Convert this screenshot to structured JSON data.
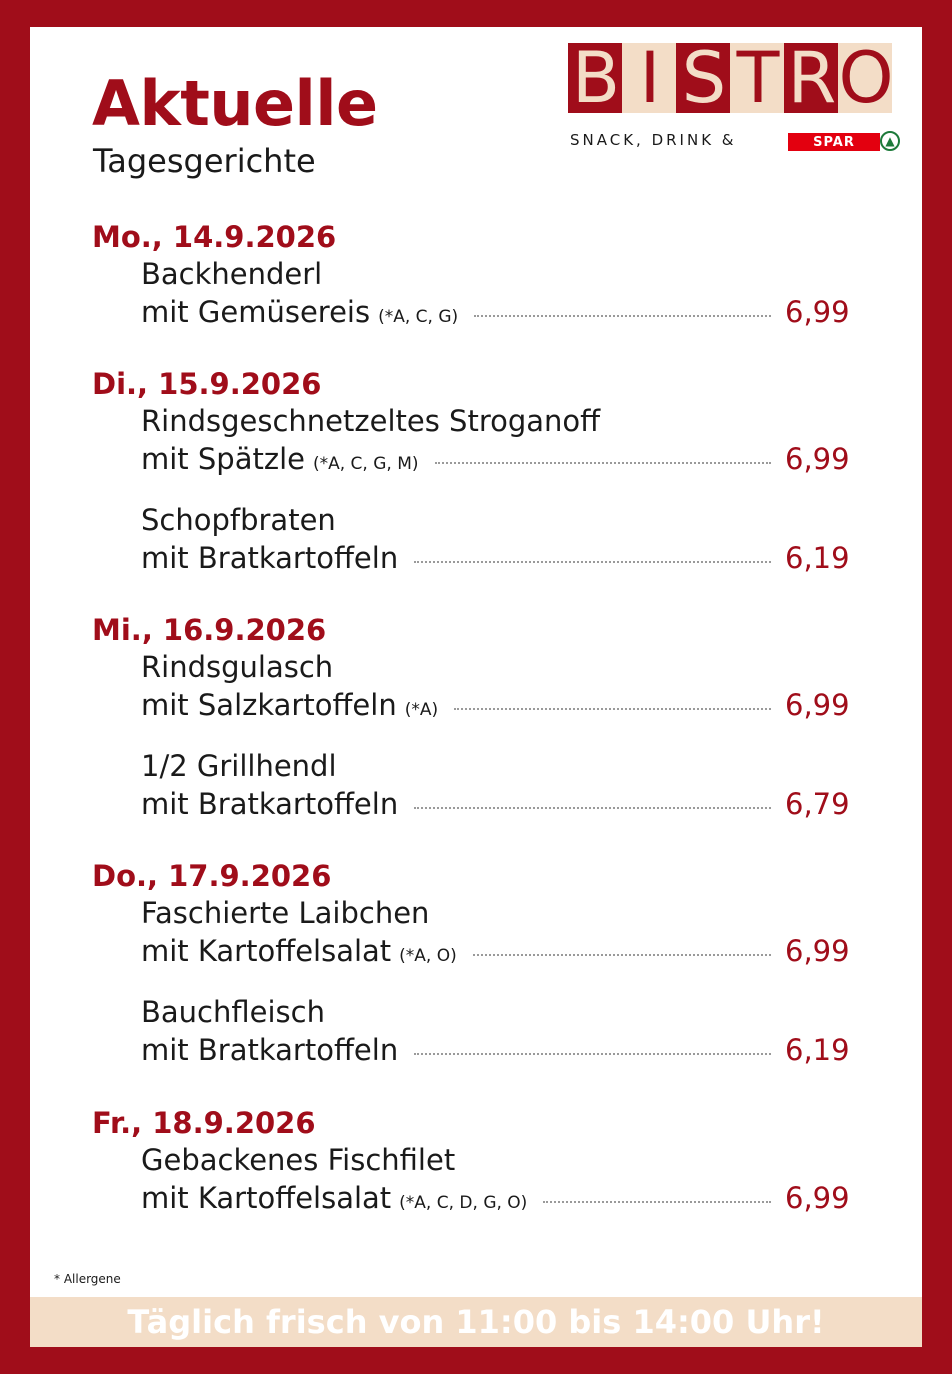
{
  "header": {
    "title": "Aktuelle",
    "subtitle": "Tagesgerichte"
  },
  "logo": {
    "letters": [
      "B",
      "I",
      "S",
      "T",
      "R",
      "O"
    ],
    "tagline": "SNACK, DRINK &",
    "brand": "SPAR",
    "colors": {
      "red": "#a00d1a",
      "cream": "#f3ddc7",
      "spar": "#e3000f"
    }
  },
  "menu": {
    "days": [
      {
        "label": "Mo., 14.9.2026"
      },
      {
        "label": "Di., 15.9.2026"
      },
      {
        "label": "Mi., 16.9.2026"
      },
      {
        "label": "Do., 17.9.2026"
      },
      {
        "label": "Fr., 18.9.2026"
      }
    ],
    "dishes": [
      {
        "line1": "Backhenderl",
        "line2": "mit Gemüsereis",
        "allergens": "(*A, C, G)",
        "price": "6,99"
      },
      {
        "line1": "Rindsgeschnetzeltes Stroganoff",
        "line2": "mit Spätzle",
        "allergens": "(*A, C, G, M)",
        "price": "6,99"
      },
      {
        "line1": "Schopfbraten",
        "line2": "mit Bratkartoffeln",
        "allergens": "",
        "price": "6,19"
      },
      {
        "line1": "Rindsgulasch",
        "line2": "mit Salzkartoffeln",
        "allergens": "(*A)",
        "price": "6,99"
      },
      {
        "line1": "1/2 Grillhendl",
        "line2": "mit Bratkartoffeln",
        "allergens": "",
        "price": "6,79"
      },
      {
        "line1": "Faschierte Laibchen",
        "line2": "mit Kartoffelsalat",
        "allergens": "(*A, O)",
        "price": "6,99"
      },
      {
        "line1": "Bauchfleisch",
        "line2": "mit Bratkartoffeln",
        "allergens": "",
        "price": "6,19"
      },
      {
        "line1": "Gebackenes Fischfilet",
        "line2": "mit Kartoffelsalat",
        "allergens": "(*A, C, D, G, O)",
        "price": "6,99"
      }
    ]
  },
  "footer": {
    "footnote": "* Allergene",
    "banner": "Täglich frisch von 11:00 bis 14:00 Uhr!"
  }
}
